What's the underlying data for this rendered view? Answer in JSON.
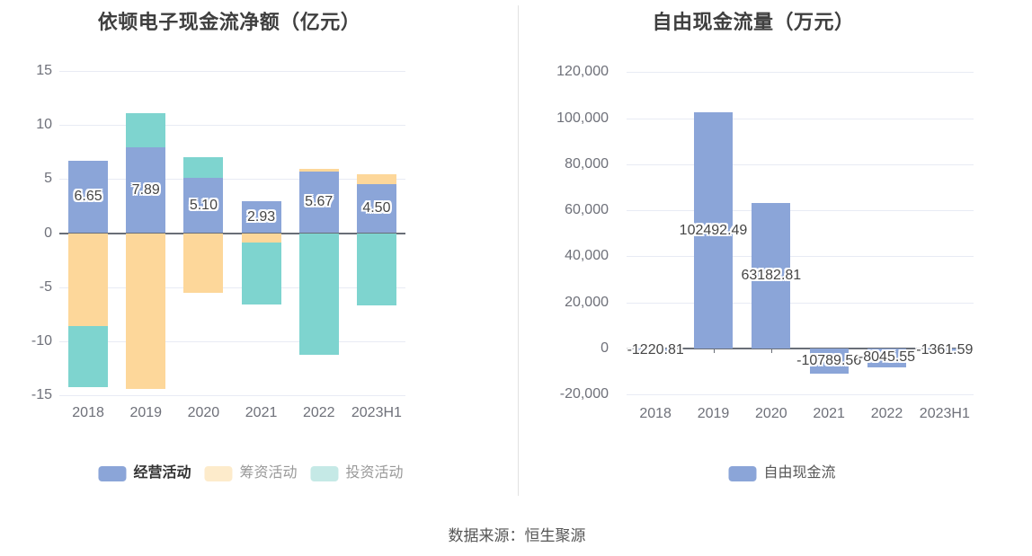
{
  "source_text": "数据来源：恒生聚源",
  "colors": {
    "operating_blue": "#8BA5D8",
    "financing_orange": "#FDD79A",
    "investing_teal": "#7ED4CF",
    "free_cashflow_blue": "#8BA5D8",
    "legend_financing_light": "#FDEBCB",
    "legend_investing_light": "#C5E9E6",
    "grid_line": "#E8EBF4",
    "axis_line": "#696E77",
    "tick_label": "#6E7079",
    "title_text": "#3F3F3F",
    "value_label_text": "#454545"
  },
  "chart_data": [
    {
      "type": "bar",
      "stacked": true,
      "title": "依顿电子现金流净额（亿元）",
      "categories": [
        "2018",
        "2019",
        "2020",
        "2021",
        "2022",
        "2023H1"
      ],
      "series": [
        {
          "name": "经营活动",
          "color": "#8BA5D8",
          "values": [
            6.65,
            7.89,
            5.1,
            2.93,
            5.67,
            4.5
          ],
          "labels": [
            "6.65",
            "7.89",
            "5.10",
            "2.93",
            "5.67",
            "4.50"
          ]
        },
        {
          "name": "筹资活动",
          "color": "#FDD79A",
          "values": [
            -8.6,
            -14.4,
            -5.5,
            -0.9,
            0.3,
            0.9
          ]
        },
        {
          "name": "投资活动",
          "color": "#7ED4CF",
          "values": [
            -5.6,
            3.2,
            1.9,
            -5.7,
            -11.2,
            -6.7
          ]
        }
      ],
      "y_ticks": [
        "15",
        "10",
        "5",
        "0",
        "-5",
        "-10",
        "-15"
      ],
      "y_tick_values": [
        15,
        10,
        5,
        0,
        -5,
        -10,
        -15
      ],
      "ylim": [
        -15,
        15
      ],
      "grid": true,
      "legend_position": "bottom",
      "legend": [
        {
          "label": "经营活动",
          "swatch": "#8BA5D8",
          "text_color": "#333333",
          "bold": true
        },
        {
          "label": "筹资活动",
          "swatch": "#FDEBCB",
          "text_color": "#999999",
          "bold": false
        },
        {
          "label": "投资活动",
          "swatch": "#C5E9E6",
          "text_color": "#999999",
          "bold": false
        }
      ]
    },
    {
      "type": "bar",
      "stacked": false,
      "title": "自由现金流量（万元）",
      "categories": [
        "2018",
        "2019",
        "2020",
        "2021",
        "2022",
        "2023H1"
      ],
      "series": [
        {
          "name": "自由现金流",
          "color": "#8BA5D8",
          "values": [
            -1220.81,
            102492.49,
            63182.81,
            -10789.56,
            -8045.55,
            -1361.59
          ],
          "labels": [
            "-1220.81",
            "102492.49",
            "63182.81",
            "-10789.56",
            "-8045.55",
            "-1361.59"
          ]
        }
      ],
      "y_ticks": [
        "120,000",
        "100,000",
        "80,000",
        "60,000",
        "40,000",
        "20,000",
        "0",
        "-20,000"
      ],
      "y_tick_values": [
        120000,
        100000,
        80000,
        60000,
        40000,
        20000,
        0,
        -20000
      ],
      "ylim": [
        -20000,
        120000
      ],
      "grid": true,
      "legend_position": "bottom",
      "legend": [
        {
          "label": "自由现金流",
          "swatch": "#8BA5D8",
          "text_color": "#555555",
          "bold": false
        }
      ]
    }
  ]
}
